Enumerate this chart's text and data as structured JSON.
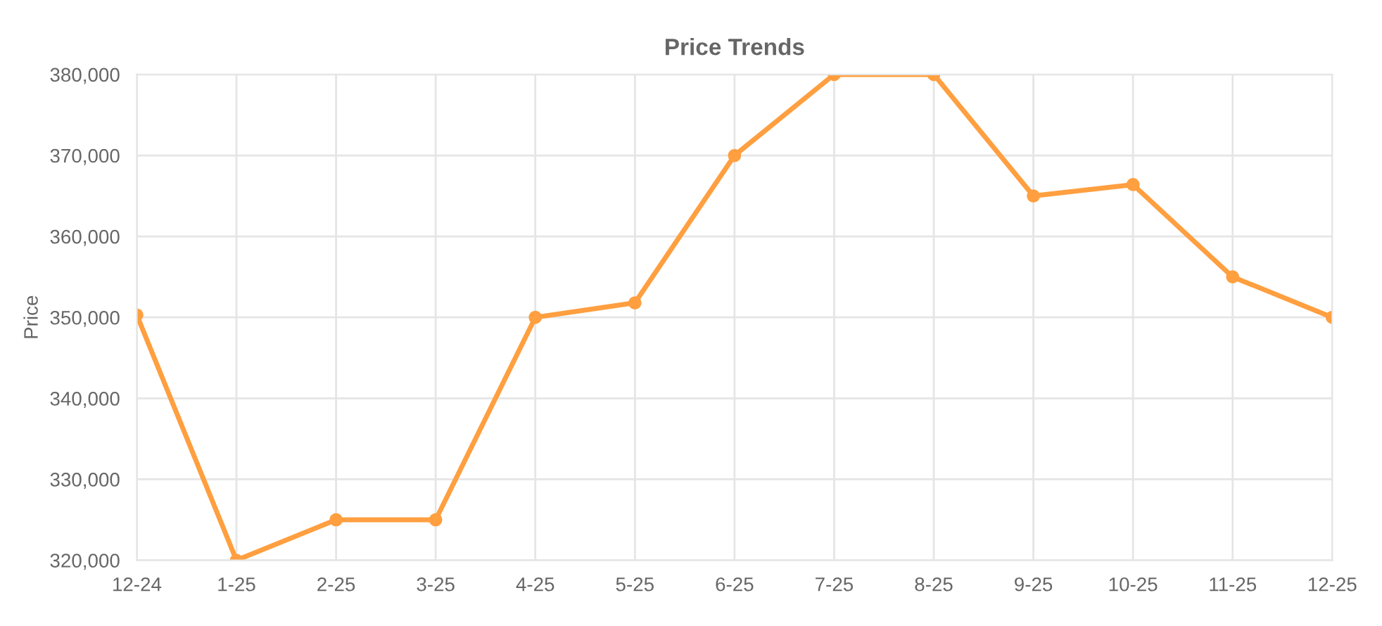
{
  "chart_data": {
    "type": "line",
    "title": "Price Trends",
    "ylabel": "Price",
    "categories": [
      "12-24",
      "1-25",
      "2-25",
      "3-25",
      "4-25",
      "5-25",
      "6-25",
      "7-25",
      "8-25",
      "9-25",
      "10-25",
      "11-25",
      "12-25"
    ],
    "series": [
      {
        "color": "#ff9f40",
        "values": [
          350300,
          320000,
          325000,
          325000,
          350000,
          351800,
          370000,
          380000,
          380000,
          365000,
          366400,
          355000,
          350000
        ]
      }
    ],
    "ylim": [
      320000,
      380000
    ],
    "yticks": [
      {
        "value": 320000,
        "label": "320,000"
      },
      {
        "value": 330000,
        "label": "330,000"
      },
      {
        "value": 340000,
        "label": "340,000"
      },
      {
        "value": 350000,
        "label": "350,000"
      },
      {
        "value": 360000,
        "label": "360,000"
      },
      {
        "value": 370000,
        "label": "370,000"
      },
      {
        "value": 380000,
        "label": "380,000"
      }
    ],
    "grid": true,
    "legend": false,
    "marker": "circle",
    "line_style": "solid"
  }
}
